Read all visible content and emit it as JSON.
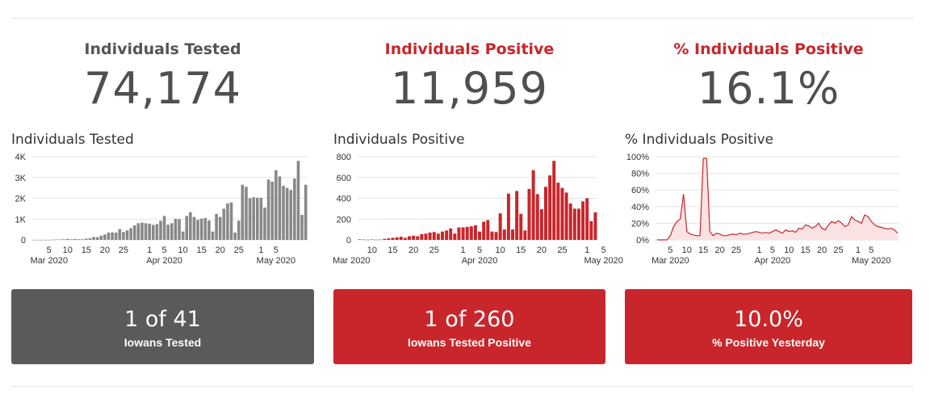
{
  "colors": {
    "gray": "#5a5a5a",
    "red": "#c8262b",
    "bar_gray": "#888888",
    "line_red": "#c8262b",
    "area_fill": "#fbe3e3"
  },
  "tested": {
    "title": "Individuals Tested",
    "value": "74,174",
    "chart_title": "Individuals Tested",
    "card_value": "1 of 41",
    "card_label": "Iowans Tested"
  },
  "positive": {
    "title": "Individuals Positive",
    "value": "11,959",
    "chart_title": "Individuals Positive",
    "card_value": "1 of 260",
    "card_label": "Iowans Tested Positive"
  },
  "pct": {
    "title": "% Individuals Positive",
    "value": "16.1%",
    "chart_title": "% Individuals Positive",
    "card_value": "10.0%",
    "card_label": "% Positive Yesterday"
  },
  "chart_data": [
    {
      "type": "bar",
      "title": "Individuals Tested",
      "ylim": [
        0,
        4000
      ],
      "yticks": [
        "0",
        "1K",
        "2K",
        "3K",
        "4K"
      ],
      "xticks": [
        "5",
        "10",
        "15",
        "20",
        "25",
        "1",
        "5",
        "10",
        "15",
        "20",
        "25",
        "1",
        "5"
      ],
      "month_labels": [
        "Mar 2020",
        "Apr 2020",
        "May 2020"
      ],
      "x_start": "2020-03-01",
      "values": [
        0,
        0,
        0,
        0,
        0,
        10,
        20,
        20,
        30,
        50,
        30,
        40,
        30,
        30,
        60,
        80,
        140,
        130,
        200,
        260,
        350,
        360,
        350,
        520,
        380,
        460,
        560,
        700,
        800,
        830,
        800,
        780,
        720,
        760,
        920,
        1150,
        730,
        800,
        1010,
        1000,
        400,
        1150,
        1330,
        1100,
        960,
        1020,
        1050,
        940,
        400,
        1250,
        1100,
        1500,
        1750,
        1800,
        350,
        920,
        2650,
        2550,
        2000,
        2050,
        2030,
        2020,
        1550,
        2900,
        2800,
        3350,
        3050,
        2600,
        2500,
        2400,
        2950,
        3800,
        1200,
        2650
      ]
    },
    {
      "type": "bar",
      "title": "Individuals Positive",
      "ylim": [
        0,
        800
      ],
      "yticks": [
        "0",
        "200",
        "400",
        "600",
        "800"
      ],
      "xticks": [
        "10",
        "15",
        "20",
        "25",
        "1",
        "5",
        "10",
        "15",
        "20",
        "25",
        "1",
        "5"
      ],
      "month_labels": [
        "Mar 2020",
        "Apr 2020",
        "May 2020"
      ],
      "x_start": "2020-03-07",
      "values": [
        5,
        3,
        2,
        4,
        2,
        3,
        10,
        15,
        20,
        25,
        30,
        20,
        35,
        40,
        35,
        55,
        60,
        70,
        75,
        60,
        80,
        90,
        110,
        60,
        120,
        120,
        125,
        130,
        140,
        80,
        175,
        190,
        80,
        75,
        255,
        100,
        445,
        100,
        470,
        250,
        90,
        490,
        670,
        440,
        295,
        510,
        620,
        760,
        550,
        500,
        455,
        350,
        300,
        300,
        370,
        400,
        180,
        265
      ]
    },
    {
      "type": "area",
      "title": "% Individuals Positive",
      "ylim": [
        0,
        100
      ],
      "yticks": [
        "0%",
        "20%",
        "40%",
        "60%",
        "80%",
        "100%"
      ],
      "xticks": [
        "5",
        "10",
        "15",
        "20",
        "25",
        "1",
        "5",
        "10",
        "15",
        "20",
        "25",
        "1",
        "5"
      ],
      "month_labels": [
        "Mar 2020",
        "Apr 2020",
        "May 2020"
      ],
      "x_start": "2020-03-01",
      "values": [
        0,
        0,
        0,
        0,
        5,
        16,
        22,
        25,
        55,
        10,
        7,
        6,
        5,
        5,
        98,
        98,
        10,
        5,
        8,
        7,
        5,
        5,
        6,
        7,
        6,
        8,
        7,
        7,
        8,
        9,
        10,
        9,
        8,
        9,
        8,
        10,
        12,
        10,
        8,
        12,
        10,
        11,
        9,
        14,
        13,
        18,
        17,
        14,
        16,
        20,
        14,
        12,
        18,
        22,
        20,
        23,
        20,
        16,
        18,
        28,
        24,
        22,
        20,
        30,
        28,
        22,
        18,
        16,
        15,
        14,
        13,
        14,
        12,
        8
      ]
    }
  ]
}
